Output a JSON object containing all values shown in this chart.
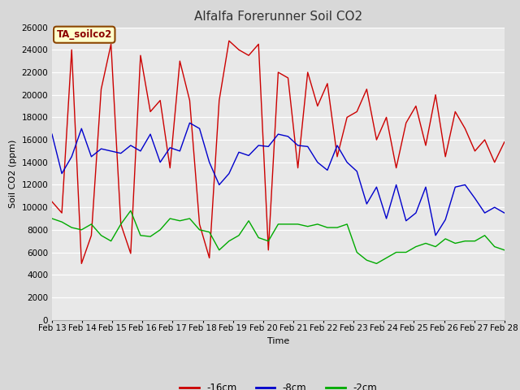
{
  "title": "Alfalfa Forerunner Soil CO2",
  "xlabel": "Time",
  "ylabel": "Soil CO2 (ppm)",
  "annotation": "TA_soilco2",
  "ylim": [
    0,
    26000
  ],
  "yticks": [
    0,
    2000,
    4000,
    6000,
    8000,
    10000,
    12000,
    14000,
    16000,
    18000,
    20000,
    22000,
    24000,
    26000
  ],
  "x_labels": [
    "Feb 13",
    "Feb 14",
    "Feb 15",
    "Feb 16",
    "Feb 17",
    "Feb 18",
    "Feb 19",
    "Feb 20",
    "Feb 21",
    "Feb 22",
    "Feb 23",
    "Feb 24",
    "Feb 25",
    "Feb 26",
    "Feb 27",
    "Feb 28"
  ],
  "series": {
    "red": {
      "label": "-16cm",
      "color": "#cc0000",
      "values": [
        10500,
        9500,
        24000,
        5000,
        7500,
        20500,
        24500,
        8500,
        5900,
        23500,
        18500,
        19500,
        13500,
        23000,
        19500,
        8500,
        5500,
        19500,
        24800,
        24000,
        23500,
        24500,
        6200,
        22000,
        21500,
        13500,
        22000,
        19000,
        21000,
        14500,
        18000,
        18500,
        20500,
        16000,
        18000,
        13500,
        17500,
        19000,
        15500,
        20000,
        14500,
        18500,
        17000,
        15000,
        16000,
        14000,
        15800
      ]
    },
    "blue": {
      "label": "-8cm",
      "color": "#0000cc",
      "values": [
        16500,
        13000,
        14500,
        17000,
        14500,
        15200,
        15000,
        14800,
        15500,
        15000,
        16500,
        14000,
        15300,
        15000,
        17500,
        17000,
        14000,
        12000,
        13000,
        14900,
        14600,
        15500,
        15400,
        16500,
        16300,
        15500,
        15400,
        14000,
        13300,
        15500,
        14000,
        13200,
        10300,
        11800,
        9000,
        12000,
        8800,
        9500,
        11800,
        7500,
        8900,
        11800,
        12000,
        10800,
        9500,
        10000,
        9500
      ]
    },
    "green": {
      "label": "-2cm",
      "color": "#00aa00",
      "values": [
        9000,
        8700,
        8200,
        8000,
        8500,
        7500,
        7000,
        8500,
        9700,
        7500,
        7400,
        8000,
        9000,
        8800,
        9000,
        8000,
        7800,
        6200,
        7000,
        7500,
        8800,
        7300,
        7000,
        8500,
        8500,
        8500,
        8300,
        8500,
        8200,
        8200,
        8500,
        6000,
        5300,
        5000,
        5500,
        6000,
        6000,
        6500,
        6800,
        6500,
        7200,
        6800,
        7000,
        7000,
        7500,
        6500,
        6200
      ]
    }
  },
  "fig_bg_color": "#d8d8d8",
  "plot_bg_color": "#e8e8e8",
  "grid_color": "#ffffff",
  "title_fontsize": 11,
  "label_fontsize": 8,
  "tick_fontsize": 7.5,
  "legend_fontsize": 8.5,
  "annotation_fontsize": 8.5
}
